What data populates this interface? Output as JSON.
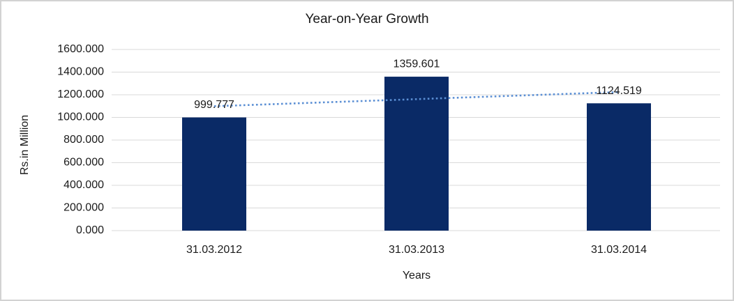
{
  "chart_data": {
    "type": "bar",
    "title": "Year-on-Year Growth",
    "xlabel": "Years",
    "ylabel": "Rs.in Million",
    "categories": [
      "31.03.2012",
      "31.03.2013",
      "31.03.2014"
    ],
    "values": [
      999.777,
      1359.601,
      1124.519
    ],
    "value_labels": [
      "999.777",
      "1359.601",
      "1124.519"
    ],
    "ylim": [
      0,
      1600
    ],
    "ytick_step": 200,
    "ytick_labels": [
      "0.000",
      "200.000",
      "400.000",
      "600.000",
      "800.000",
      "1000.000",
      "1200.000",
      "1400.000",
      "1600.000"
    ],
    "grid": "horizontal-only",
    "legend": "none",
    "trendline": {
      "type": "linear",
      "style": "dotted",
      "color": "#5b8fd4",
      "endpoints_values": [
        1098.928,
        1223.67
      ]
    },
    "colors": {
      "bar": "#0a2a66",
      "gridline": "#d9d9d9",
      "axis_line": "#d9d9d9",
      "text": "#1a1a1a",
      "frame_border": "#d2d2d2",
      "background": "#ffffff"
    }
  }
}
